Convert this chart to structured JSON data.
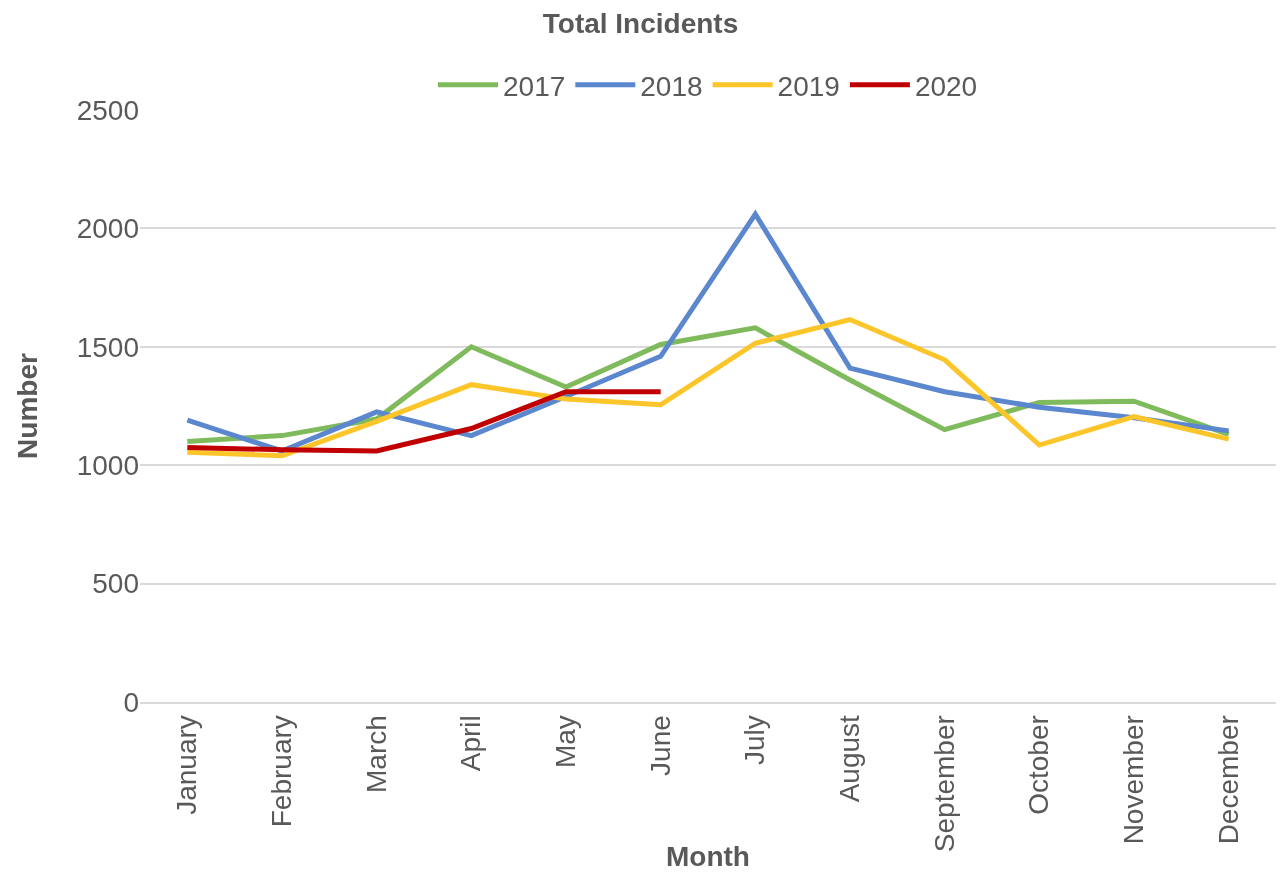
{
  "chart_data": {
    "type": "line",
    "title": "Total Incidents",
    "xlabel": "Month",
    "ylabel": "Number",
    "categories": [
      "January",
      "February",
      "March",
      "April",
      "May",
      "June",
      "July",
      "August",
      "September",
      "October",
      "November",
      "December"
    ],
    "series": [
      {
        "name": "2017",
        "color": "#7fba5c",
        "values": [
          1100,
          1125,
          1195,
          1500,
          1330,
          1510,
          1580,
          1360,
          1150,
          1265,
          1270,
          1130
        ]
      },
      {
        "name": "2018",
        "color": "#5b87cf",
        "values": [
          1190,
          1060,
          1225,
          1125,
          1290,
          1460,
          2060,
          1410,
          1310,
          1245,
          1200,
          1145
        ]
      },
      {
        "name": "2019",
        "color": "#fcc52a",
        "values": [
          1055,
          1040,
          1185,
          1340,
          1280,
          1255,
          1515,
          1615,
          1445,
          1085,
          1205,
          1110
        ]
      },
      {
        "name": "2020",
        "color": "#c00000",
        "values": [
          1075,
          1065,
          1060,
          1155,
          1310,
          1310,
          null,
          null,
          null,
          null,
          null,
          null
        ]
      }
    ],
    "ylim": [
      0,
      2500
    ],
    "yticks": [
      0,
      500,
      1000,
      1500,
      2000,
      2500
    ],
    "grid": "y",
    "legend": "top",
    "marker": "none",
    "line_style": "solid"
  }
}
